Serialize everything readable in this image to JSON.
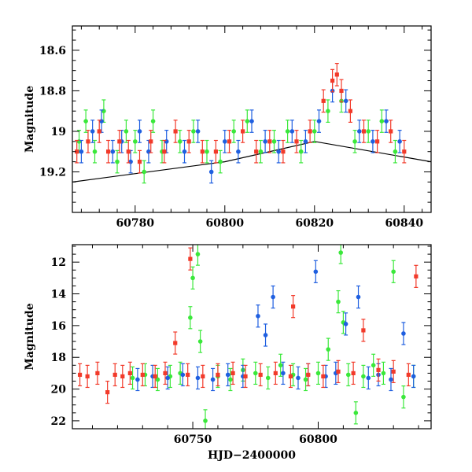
{
  "chart_data": [
    {
      "type": "scatter",
      "panel": "top",
      "title": "",
      "xlabel": "",
      "ylabel": "Magnitude",
      "xlim": [
        60766,
        60846
      ],
      "ylim": [
        19.4,
        18.48
      ],
      "y_inverted": true,
      "x_ticks": [
        60780,
        60800,
        60820,
        60840
      ],
      "x_tick_labels": [
        "60780",
        "60800",
        "60820",
        "60840"
      ],
      "y_ticks": [
        18.6,
        18.8,
        19.0,
        19.2
      ],
      "y_tick_labels": [
        "18.6",
        "18.8",
        "19",
        "19.2"
      ],
      "grid": false,
      "legend": "none",
      "series": [
        {
          "color": "#3ae83a",
          "marker": "circle",
          "error_bars": true,
          "x": [
            60767.5,
            60769,
            60771,
            60773,
            60776,
            60778,
            60780,
            60782,
            60784,
            60786,
            60790,
            60793,
            60796,
            60799,
            60802,
            60805,
            60808,
            60811,
            60814,
            60817,
            60820,
            60823,
            60826,
            60829,
            60832,
            60835,
            60838
          ],
          "y": [
            19.05,
            18.95,
            19.1,
            18.9,
            19.15,
            19.0,
            19.05,
            19.2,
            18.95,
            19.1,
            19.05,
            19.0,
            19.1,
            19.15,
            19.0,
            18.95,
            19.1,
            19.05,
            19.0,
            19.1,
            19.0,
            18.9,
            18.85,
            19.05,
            19.0,
            18.95,
            19.1
          ]
        },
        {
          "color": "#1f5fe0",
          "marker": "circle",
          "error_bars": true,
          "x": [
            60768,
            60770.5,
            60772.5,
            60775,
            60777,
            60779,
            60781,
            60783,
            60787,
            60791,
            60794,
            60797,
            60800,
            60803,
            60806,
            60809,
            60812,
            60815,
            60818,
            60821,
            60824,
            60827,
            60830,
            60833,
            60836,
            60839
          ],
          "y": [
            19.1,
            19.0,
            18.95,
            19.1,
            19.05,
            19.15,
            19.0,
            19.1,
            19.05,
            19.1,
            19.0,
            19.2,
            19.05,
            19.1,
            18.95,
            19.05,
            19.1,
            19.0,
            19.05,
            18.95,
            18.8,
            18.85,
            19.0,
            19.05,
            18.95,
            19.05
          ]
        },
        {
          "color": "#f23a2a",
          "marker": "square",
          "error_bars": true,
          "x": [
            60767,
            60769.5,
            60772,
            60774,
            60776.5,
            60778.5,
            60781,
            60783.5,
            60786.5,
            60789,
            60792,
            60795,
            60798,
            60801,
            60804,
            60807,
            60810,
            60813,
            60816,
            60819,
            60822,
            60824,
            60825,
            60826,
            60828,
            60831,
            60834,
            60837,
            60840
          ],
          "y": [
            19.1,
            19.05,
            19.0,
            19.1,
            19.05,
            19.1,
            19.15,
            19.05,
            19.1,
            19.0,
            19.05,
            19.1,
            19.1,
            19.05,
            19.0,
            19.1,
            19.05,
            19.1,
            19.05,
            19.0,
            18.85,
            18.75,
            18.72,
            18.8,
            18.9,
            19.0,
            19.05,
            19.0,
            19.1
          ]
        }
      ],
      "model_line": {
        "color": "#000000",
        "x": [
          60766,
          60800,
          60820,
          60846
        ],
        "y": [
          19.25,
          19.15,
          19.05,
          19.15
        ]
      }
    },
    {
      "type": "scatter",
      "panel": "bottom",
      "title": "",
      "xlabel": "HJD−2400000",
      "ylabel": "Magnitude",
      "xlim": [
        60702,
        60845
      ],
      "ylim": [
        22.5,
        10.9
      ],
      "y_inverted": true,
      "x_ticks": [
        60750,
        60800
      ],
      "x_tick_labels": [
        "60750",
        "60800"
      ],
      "y_ticks": [
        12,
        14,
        16,
        18,
        20,
        22
      ],
      "y_tick_labels": [
        "12",
        "14",
        "16",
        "18",
        "20",
        "22"
      ],
      "grid": false,
      "legend": "none",
      "series": [
        {
          "color": "#3ae83a",
          "marker": "circle",
          "error_bars": true,
          "x": [
            60726,
            60731,
            60736,
            60741,
            60745,
            60749,
            60750,
            60752,
            60753,
            60755,
            60760,
            60765,
            60770,
            60775,
            60780,
            60785,
            60790,
            60795,
            60800,
            60804,
            60808,
            60809,
            60810,
            60812,
            60815,
            60818,
            60822,
            60826,
            60830,
            60834,
            60838
          ],
          "y": [
            19.3,
            19.1,
            19.4,
            19.2,
            19.0,
            15.5,
            13.0,
            11.5,
            17.0,
            22.0,
            19.2,
            19.4,
            18.8,
            19.0,
            19.3,
            18.5,
            19.1,
            19.4,
            19.0,
            17.5,
            14.5,
            11.4,
            15.8,
            19.1,
            21.5,
            19.2,
            18.5,
            19.0,
            12.6,
            20.5,
            19.2
          ]
        },
        {
          "color": "#1f5fe0",
          "marker": "circle",
          "error_bars": true,
          "x": [
            60728,
            60734,
            60740,
            60746,
            60752,
            60758,
            60764,
            60770,
            60776,
            60779,
            60782,
            60786,
            60792,
            60796,
            60799,
            60803,
            60807,
            60811,
            60816,
            60820,
            60824,
            60829,
            60834,
            60838
          ],
          "y": [
            19.4,
            19.2,
            19.3,
            19.1,
            19.3,
            19.4,
            19.1,
            19.2,
            15.4,
            16.6,
            14.2,
            19.0,
            19.3,
            19.1,
            12.6,
            19.2,
            19.0,
            15.9,
            14.2,
            19.3,
            19.1,
            19.4,
            16.5,
            19.2
          ]
        },
        {
          "color": "#f23a2a",
          "marker": "square",
          "error_bars": true,
          "x": [
            60705,
            60708,
            60712,
            60716,
            60719,
            60722,
            60725,
            60730,
            60735,
            60739,
            60743,
            60748,
            60749,
            60754,
            60760,
            60766,
            60771,
            60777,
            60783,
            60789,
            60790,
            60796,
            60802,
            60808,
            60814,
            60818,
            60824,
            60830,
            60836,
            60839
          ],
          "y": [
            19.1,
            19.2,
            19.0,
            20.2,
            19.1,
            19.2,
            19.0,
            19.1,
            19.2,
            19.0,
            17.1,
            19.1,
            11.8,
            19.2,
            19.1,
            19.0,
            19.2,
            19.1,
            19.0,
            19.2,
            14.8,
            19.1,
            19.2,
            18.9,
            19.0,
            16.3,
            18.8,
            18.9,
            19.1,
            12.9
          ]
        }
      ]
    }
  ]
}
